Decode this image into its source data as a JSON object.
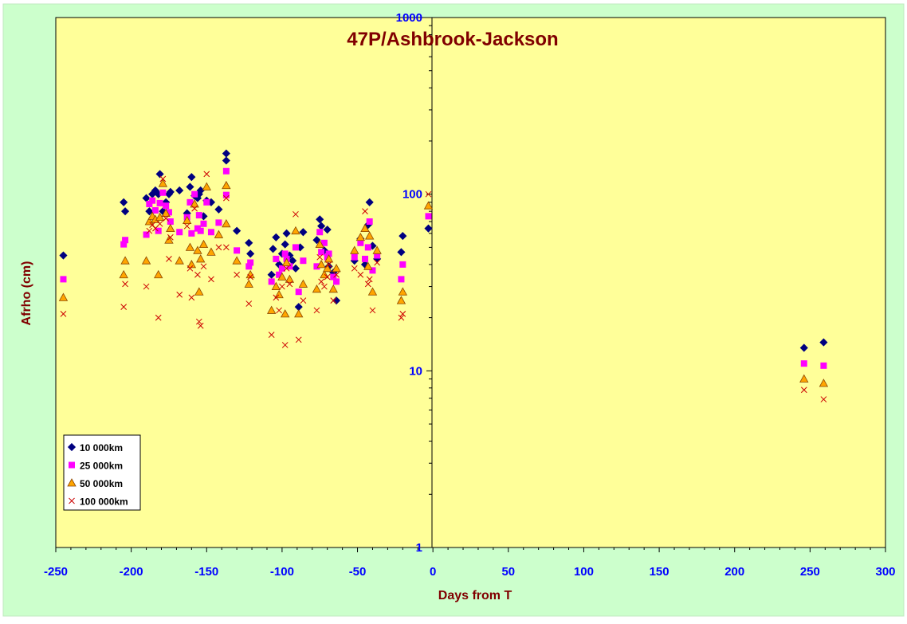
{
  "chart_data": {
    "type": "scatter",
    "title": "47P/Ashbrook-Jackson",
    "xlabel": "Days from T",
    "ylabel": "Afrho (cm)",
    "x_range": [
      -250,
      300
    ],
    "x_ticks": [
      -250,
      -200,
      -150,
      -100,
      -50,
      0,
      50,
      100,
      150,
      200,
      250,
      300
    ],
    "y_scale": "log",
    "y_range": [
      1,
      1000
    ],
    "y_ticks": [
      1,
      10,
      100,
      1000
    ],
    "grid": false,
    "legend_position": "bottom-left",
    "colors": {
      "outer_background": "#ccffcc",
      "plot_background": "#ffff99",
      "title": "#800000",
      "axis_label": "#800000",
      "tick_label": "#0000ff"
    },
    "series": [
      {
        "name": "10 000km",
        "marker": "diamond",
        "color": "#000080",
        "points": [
          [
            -245,
            45
          ],
          [
            -205,
            90
          ],
          [
            -204,
            80
          ],
          [
            -190,
            95
          ],
          [
            -188,
            80
          ],
          [
            -186,
            100
          ],
          [
            -184,
            105
          ],
          [
            -182,
            100
          ],
          [
            -181,
            130
          ],
          [
            -179,
            80
          ],
          [
            -177,
            90
          ],
          [
            -175,
            100
          ],
          [
            -174,
            103
          ],
          [
            -168,
            105
          ],
          [
            -163,
            78
          ],
          [
            -161,
            110
          ],
          [
            -160,
            125
          ],
          [
            -158,
            98
          ],
          [
            -156,
            95
          ],
          [
            -155,
            100
          ],
          [
            -154,
            105
          ],
          [
            -152,
            75
          ],
          [
            -150,
            92
          ],
          [
            -147,
            90
          ],
          [
            -142,
            82
          ],
          [
            -137,
            170
          ],
          [
            -137,
            155
          ],
          [
            -130,
            62
          ],
          [
            -122,
            53
          ],
          [
            -121,
            46
          ],
          [
            -107,
            35
          ],
          [
            -106,
            49
          ],
          [
            -104,
            57
          ],
          [
            -102,
            40
          ],
          [
            -100,
            46
          ],
          [
            -98,
            52
          ],
          [
            -97,
            60
          ],
          [
            -95,
            45
          ],
          [
            -93,
            42
          ],
          [
            -91,
            38
          ],
          [
            -89,
            23
          ],
          [
            -88,
            50
          ],
          [
            -86,
            61
          ],
          [
            -77,
            55
          ],
          [
            -75,
            72
          ],
          [
            -74,
            66
          ],
          [
            -72,
            48
          ],
          [
            -70,
            63
          ],
          [
            -69,
            39
          ],
          [
            -66,
            36
          ],
          [
            -64,
            25
          ],
          [
            -52,
            42
          ],
          [
            -48,
            56
          ],
          [
            -45,
            40
          ],
          [
            -43,
            67
          ],
          [
            -42,
            90
          ],
          [
            -40,
            51
          ],
          [
            -37,
            43
          ],
          [
            -21,
            47
          ],
          [
            -20,
            58
          ],
          [
            -3,
            64
          ],
          [
            246,
            13.5
          ],
          [
            259,
            14.5
          ]
        ]
      },
      {
        "name": "25 000km",
        "marker": "square",
        "color": "#ff00ff",
        "points": [
          [
            -245,
            33
          ],
          [
            -205,
            52
          ],
          [
            -204,
            55
          ],
          [
            -190,
            59
          ],
          [
            -188,
            88
          ],
          [
            -186,
            92
          ],
          [
            -184,
            81
          ],
          [
            -182,
            62
          ],
          [
            -181,
            89
          ],
          [
            -179,
            102
          ],
          [
            -177,
            86
          ],
          [
            -175,
            79
          ],
          [
            -174,
            70
          ],
          [
            -168,
            61
          ],
          [
            -163,
            74
          ],
          [
            -161,
            90
          ],
          [
            -160,
            60
          ],
          [
            -158,
            100
          ],
          [
            -156,
            64
          ],
          [
            -155,
            76
          ],
          [
            -154,
            62
          ],
          [
            -152,
            68
          ],
          [
            -150,
            90
          ],
          [
            -147,
            61
          ],
          [
            -142,
            69
          ],
          [
            -137,
            135
          ],
          [
            -137,
            99
          ],
          [
            -130,
            48
          ],
          [
            -122,
            39
          ],
          [
            -121,
            41
          ],
          [
            -107,
            32
          ],
          [
            -104,
            43
          ],
          [
            -102,
            35
          ],
          [
            -100,
            38
          ],
          [
            -98,
            46
          ],
          [
            -97,
            43
          ],
          [
            -95,
            39
          ],
          [
            -91,
            50
          ],
          [
            -89,
            28
          ],
          [
            -86,
            42
          ],
          [
            -77,
            39
          ],
          [
            -75,
            61
          ],
          [
            -74,
            47
          ],
          [
            -72,
            53
          ],
          [
            -70,
            44
          ],
          [
            -69,
            46
          ],
          [
            -66,
            34
          ],
          [
            -64,
            32
          ],
          [
            -52,
            44
          ],
          [
            -48,
            53
          ],
          [
            -45,
            43
          ],
          [
            -43,
            50
          ],
          [
            -42,
            70
          ],
          [
            -40,
            37
          ],
          [
            -37,
            45
          ],
          [
            -21,
            33
          ],
          [
            -20,
            40
          ],
          [
            -3,
            75
          ],
          [
            246,
            11
          ],
          [
            259,
            10.7
          ]
        ]
      },
      {
        "name": "50 000km",
        "marker": "triangle",
        "color": "#ffa500",
        "points": [
          [
            -245,
            26
          ],
          [
            -205,
            35
          ],
          [
            -204,
            42
          ],
          [
            -190,
            42
          ],
          [
            -188,
            70
          ],
          [
            -186,
            75
          ],
          [
            -184,
            72
          ],
          [
            -182,
            35
          ],
          [
            -181,
            74
          ],
          [
            -179,
            115
          ],
          [
            -177,
            78
          ],
          [
            -175,
            55
          ],
          [
            -174,
            64
          ],
          [
            -168,
            42
          ],
          [
            -163,
            71
          ],
          [
            -161,
            50
          ],
          [
            -160,
            40
          ],
          [
            -158,
            88
          ],
          [
            -156,
            48
          ],
          [
            -155,
            28
          ],
          [
            -154,
            43
          ],
          [
            -152,
            52
          ],
          [
            -150,
            110
          ],
          [
            -147,
            47
          ],
          [
            -142,
            59
          ],
          [
            -137,
            112
          ],
          [
            -137,
            68
          ],
          [
            -130,
            42
          ],
          [
            -122,
            31
          ],
          [
            -121,
            35
          ],
          [
            -107,
            22
          ],
          [
            -104,
            30
          ],
          [
            -102,
            27
          ],
          [
            -100,
            34
          ],
          [
            -98,
            21
          ],
          [
            -97,
            41
          ],
          [
            -95,
            33
          ],
          [
            -91,
            62
          ],
          [
            -89,
            21
          ],
          [
            -86,
            31
          ],
          [
            -77,
            29
          ],
          [
            -75,
            52
          ],
          [
            -74,
            40
          ],
          [
            -72,
            35
          ],
          [
            -70,
            38
          ],
          [
            -69,
            43
          ],
          [
            -66,
            29
          ],
          [
            -64,
            38
          ],
          [
            -52,
            48
          ],
          [
            -48,
            57
          ],
          [
            -45,
            64
          ],
          [
            -43,
            39
          ],
          [
            -42,
            58
          ],
          [
            -40,
            28
          ],
          [
            -37,
            48
          ],
          [
            -21,
            25
          ],
          [
            -20,
            28
          ],
          [
            -3,
            86
          ],
          [
            246,
            9
          ],
          [
            259,
            8.5
          ]
        ]
      },
      {
        "name": "100 000km",
        "marker": "x",
        "color": "#cc0000",
        "points": [
          [
            -245,
            21
          ],
          [
            -205,
            23
          ],
          [
            -204,
            31
          ],
          [
            -190,
            30
          ],
          [
            -188,
            62
          ],
          [
            -186,
            67
          ],
          [
            -184,
            64
          ],
          [
            -182,
            20
          ],
          [
            -181,
            68
          ],
          [
            -179,
            122
          ],
          [
            -177,
            73
          ],
          [
            -175,
            43
          ],
          [
            -174,
            57
          ],
          [
            -168,
            27
          ],
          [
            -163,
            66
          ],
          [
            -161,
            38
          ],
          [
            -160,
            26
          ],
          [
            -158,
            83
          ],
          [
            -156,
            35
          ],
          [
            -155,
            19
          ],
          [
            -154,
            18
          ],
          [
            -152,
            39
          ],
          [
            -150,
            130
          ],
          [
            -147,
            33
          ],
          [
            -142,
            50
          ],
          [
            -137,
            95
          ],
          [
            -137,
            50
          ],
          [
            -130,
            35
          ],
          [
            -122,
            24
          ],
          [
            -121,
            34
          ],
          [
            -107,
            16
          ],
          [
            -104,
            26
          ],
          [
            -102,
            22
          ],
          [
            -100,
            30
          ],
          [
            -98,
            14
          ],
          [
            -97,
            38
          ],
          [
            -95,
            31
          ],
          [
            -91,
            77
          ],
          [
            -89,
            15
          ],
          [
            -86,
            25
          ],
          [
            -77,
            22
          ],
          [
            -75,
            44
          ],
          [
            -74,
            32
          ],
          [
            -72,
            30
          ],
          [
            -70,
            34
          ],
          [
            -69,
            40
          ],
          [
            -66,
            25
          ],
          [
            -64,
            35
          ],
          [
            -52,
            38
          ],
          [
            -48,
            35
          ],
          [
            -45,
            80
          ],
          [
            -43,
            31
          ],
          [
            -42,
            33
          ],
          [
            -40,
            22
          ],
          [
            -37,
            41
          ],
          [
            -21,
            20
          ],
          [
            -20,
            21
          ],
          [
            -3,
            100
          ],
          [
            246,
            7.8
          ],
          [
            259,
            6.9
          ]
        ]
      }
    ]
  }
}
